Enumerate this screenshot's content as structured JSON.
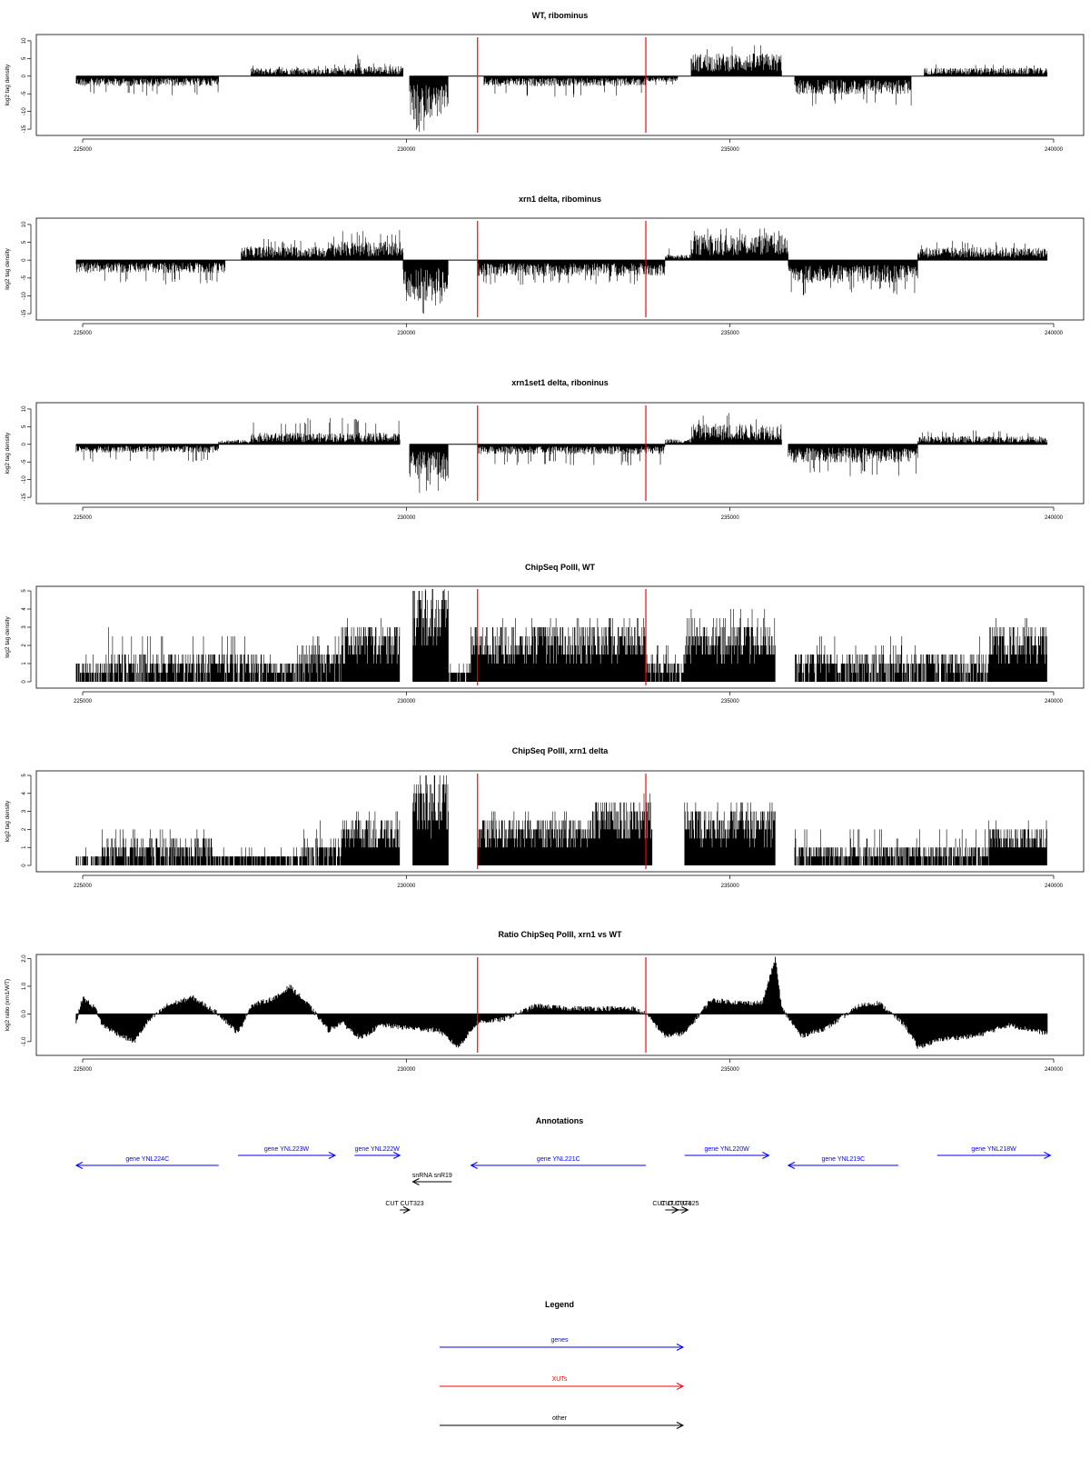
{
  "chart_data": [
    {
      "type": "bar",
      "title": "WT, ribominus",
      "ylabel": "log2 tag density",
      "xlim": [
        224800,
        240400
      ],
      "ylim": [
        -16,
        11
      ],
      "yticks": [
        10,
        5,
        0,
        -5,
        -10,
        -15
      ],
      "xticks": [
        225000,
        230000,
        235000,
        240000
      ],
      "markers": [
        231100,
        233700
      ],
      "segments": [
        {
          "start": 224900,
          "end": 227100,
          "sign": -1,
          "typ": 2.2,
          "peak": 5.5
        },
        {
          "start": 227100,
          "end": 227600,
          "sign": 0
        },
        {
          "start": 227600,
          "end": 228800,
          "sign": 1,
          "typ": 1.8,
          "peak": 3.0
        },
        {
          "start": 228800,
          "end": 229250,
          "sign": 1,
          "typ": 1.8,
          "peak": 3.5
        },
        {
          "start": 229250,
          "end": 229300,
          "sign": 1,
          "typ": 5,
          "peak": 8.2
        },
        {
          "start": 229300,
          "end": 229950,
          "sign": 1,
          "typ": 2.2,
          "peak": 4.0
        },
        {
          "start": 230050,
          "end": 230650,
          "sign": -1,
          "typ": 9,
          "peak": 16
        },
        {
          "start": 230650,
          "end": 231200,
          "sign": 0
        },
        {
          "start": 231200,
          "end": 233700,
          "sign": -1,
          "typ": 2.2,
          "peak": 6.0
        },
        {
          "start": 233700,
          "end": 234200,
          "sign": -1,
          "typ": 1.2,
          "peak": 3.0
        },
        {
          "start": 234200,
          "end": 234400,
          "sign": 0
        },
        {
          "start": 234400,
          "end": 235800,
          "sign": 1,
          "typ": 5,
          "peak": 9
        },
        {
          "start": 235800,
          "end": 236000,
          "sign": 0
        },
        {
          "start": 236000,
          "end": 237800,
          "sign": -1,
          "typ": 4,
          "peak": 8.5
        },
        {
          "start": 237800,
          "end": 238000,
          "sign": 0
        },
        {
          "start": 238000,
          "end": 239900,
          "sign": 1,
          "typ": 1.8,
          "peak": 3.5
        }
      ]
    },
    {
      "type": "bar",
      "title": "xrn1 delta, ribominus",
      "ylabel": "log2 tag density",
      "xlim": [
        224800,
        240400
      ],
      "ylim": [
        -16,
        11
      ],
      "yticks": [
        10,
        5,
        0,
        -5,
        -10,
        -15
      ],
      "xticks": [
        225000,
        230000,
        235000,
        240000
      ],
      "markers": [
        231100,
        233700
      ],
      "segments": [
        {
          "start": 224900,
          "end": 227200,
          "sign": -1,
          "typ": 2.8,
          "peak": 7.0
        },
        {
          "start": 227200,
          "end": 227450,
          "sign": 0
        },
        {
          "start": 227450,
          "end": 228800,
          "sign": 1,
          "typ": 3.0,
          "peak": 6.0
        },
        {
          "start": 228800,
          "end": 229950,
          "sign": 1,
          "typ": 4.0,
          "peak": 8.5
        },
        {
          "start": 229950,
          "end": 230650,
          "sign": -1,
          "typ": 9,
          "peak": 15
        },
        {
          "start": 230650,
          "end": 231100,
          "sign": 0
        },
        {
          "start": 231100,
          "end": 234000,
          "sign": -1,
          "typ": 3.5,
          "peak": 7.0
        },
        {
          "start": 234000,
          "end": 234400,
          "sign": 1,
          "typ": 1.2,
          "peak": 4.0
        },
        {
          "start": 234400,
          "end": 235900,
          "sign": 1,
          "typ": 5.5,
          "peak": 9.0
        },
        {
          "start": 235900,
          "end": 237900,
          "sign": -1,
          "typ": 5,
          "peak": 10
        },
        {
          "start": 237900,
          "end": 239900,
          "sign": 1,
          "typ": 2.8,
          "peak": 5.5
        }
      ]
    },
    {
      "type": "bar",
      "title": "xrn1set1 delta, riboninus",
      "ylabel": "log2 tag density",
      "xlim": [
        224800,
        240400
      ],
      "ylim": [
        -16,
        11
      ],
      "yticks": [
        10,
        5,
        0,
        -5,
        -10,
        -15
      ],
      "xticks": [
        225000,
        230000,
        235000,
        240000
      ],
      "markers": [
        231100,
        233700
      ],
      "segments": [
        {
          "start": 224900,
          "end": 227100,
          "sign": -1,
          "typ": 1.8,
          "peak": 5.0
        },
        {
          "start": 227100,
          "end": 227600,
          "sign": 1,
          "typ": 1.0,
          "peak": 2.5
        },
        {
          "start": 227600,
          "end": 229900,
          "sign": 1,
          "typ": 2.5,
          "peak": 7.5
        },
        {
          "start": 230050,
          "end": 230650,
          "sign": -1,
          "typ": 8,
          "peak": 14
        },
        {
          "start": 230650,
          "end": 231100,
          "sign": 0
        },
        {
          "start": 231100,
          "end": 234000,
          "sign": -1,
          "typ": 2.2,
          "peak": 6.0
        },
        {
          "start": 234000,
          "end": 234400,
          "sign": 1,
          "typ": 1.2,
          "peak": 3.0
        },
        {
          "start": 234400,
          "end": 235800,
          "sign": 1,
          "typ": 4.5,
          "peak": 9.0
        },
        {
          "start": 235900,
          "end": 237900,
          "sign": -1,
          "typ": 4,
          "peak": 9
        },
        {
          "start": 237900,
          "end": 239900,
          "sign": 1,
          "typ": 1.8,
          "peak": 4.0
        }
      ]
    },
    {
      "type": "bar",
      "title": "ChipSeq PolII, WT",
      "ylabel": "log2 tag density",
      "xlim": [
        224800,
        240400
      ],
      "ylim": [
        -0.2,
        5.1
      ],
      "yticks": [
        0,
        1,
        2,
        3,
        4,
        5
      ],
      "xticks": [
        225000,
        230000,
        235000,
        240000
      ],
      "markers": [
        231100,
        233700
      ],
      "segments": [
        {
          "start": 224900,
          "end": 225400,
          "sign": 1,
          "typ": 0.8,
          "peak": 1.5
        },
        {
          "start": 225400,
          "end": 227800,
          "sign": 1,
          "typ": 1.2,
          "peak": 2.8
        },
        {
          "start": 227800,
          "end": 228300,
          "sign": 1,
          "typ": 0.9,
          "peak": 2.0
        },
        {
          "start": 228300,
          "end": 229000,
          "sign": 1,
          "typ": 1.4,
          "peak": 2.5
        },
        {
          "start": 229000,
          "end": 229900,
          "sign": 1,
          "typ": 2.3,
          "peak": 3.8
        },
        {
          "start": 230100,
          "end": 230650,
          "sign": 1,
          "typ": 4.3,
          "peak": 5.0
        },
        {
          "start": 230650,
          "end": 231000,
          "sign": 1,
          "typ": 0.5,
          "peak": 1.0
        },
        {
          "start": 231000,
          "end": 232900,
          "sign": 1,
          "typ": 2.3,
          "peak": 3.5
        },
        {
          "start": 232900,
          "end": 233700,
          "sign": 1,
          "typ": 2.6,
          "peak": 3.6
        },
        {
          "start": 233700,
          "end": 234300,
          "sign": 1,
          "typ": 1.0,
          "peak": 2.0
        },
        {
          "start": 234300,
          "end": 235700,
          "sign": 1,
          "typ": 2.5,
          "peak": 4.2
        },
        {
          "start": 235700,
          "end": 236000,
          "sign": 0
        },
        {
          "start": 236000,
          "end": 237600,
          "sign": 1,
          "typ": 1.3,
          "peak": 2.5
        },
        {
          "start": 237600,
          "end": 239000,
          "sign": 1,
          "typ": 1.3,
          "peak": 2.5
        },
        {
          "start": 239000,
          "end": 239900,
          "sign": 1,
          "typ": 2.3,
          "peak": 3.5
        }
      ]
    },
    {
      "type": "bar",
      "title": "ChipSeq PolII, xrn1 delta",
      "ylabel": "log2 tag density",
      "xlim": [
        224800,
        240400
      ],
      "ylim": [
        -0.2,
        5.1
      ],
      "yticks": [
        0,
        1,
        2,
        3,
        4,
        5
      ],
      "xticks": [
        225000,
        230000,
        235000,
        240000
      ],
      "markers": [
        231100,
        233700
      ],
      "segments": [
        {
          "start": 224900,
          "end": 225300,
          "sign": 1,
          "typ": 0.4,
          "peak": 1.0
        },
        {
          "start": 225300,
          "end": 227000,
          "sign": 1,
          "typ": 1.1,
          "peak": 2.2
        },
        {
          "start": 227000,
          "end": 228400,
          "sign": 1,
          "typ": 0.5,
          "peak": 1.2
        },
        {
          "start": 228400,
          "end": 229000,
          "sign": 1,
          "typ": 1.0,
          "peak": 2.5
        },
        {
          "start": 229000,
          "end": 229900,
          "sign": 1,
          "typ": 1.9,
          "peak": 3.0
        },
        {
          "start": 230100,
          "end": 230650,
          "sign": 1,
          "typ": 3.8,
          "peak": 4.4
        },
        {
          "start": 230650,
          "end": 231100,
          "sign": 0
        },
        {
          "start": 231100,
          "end": 232900,
          "sign": 1,
          "typ": 2.0,
          "peak": 3.0
        },
        {
          "start": 232900,
          "end": 233800,
          "sign": 1,
          "typ": 2.8,
          "peak": 3.6
        },
        {
          "start": 233800,
          "end": 234300,
          "sign": 0
        },
        {
          "start": 234300,
          "end": 235700,
          "sign": 1,
          "typ": 2.5,
          "peak": 3.2
        },
        {
          "start": 235700,
          "end": 236000,
          "sign": 0
        },
        {
          "start": 236000,
          "end": 239000,
          "sign": 1,
          "typ": 0.9,
          "peak": 2.0
        },
        {
          "start": 239000,
          "end": 239900,
          "sign": 1,
          "typ": 1.7,
          "peak": 2.5
        }
      ]
    },
    {
      "type": "area",
      "title": "Ratio ChipSeq PolII, xrn1 vs WT",
      "ylabel": "log2 ratio (xrn1/WT)",
      "xlim": [
        224800,
        240400
      ],
      "ylim": [
        -1.4,
        2.05
      ],
      "yticks": [
        2.0,
        1.0,
        0.0,
        -1.0
      ],
      "xticks": [
        225000,
        230000,
        235000,
        240000
      ],
      "markers": [
        231100,
        233700
      ],
      "x": [
        224900,
        225000,
        225200,
        225300,
        225600,
        225800,
        226000,
        226300,
        226700,
        227100,
        227400,
        227600,
        228000,
        228200,
        228500,
        228800,
        229000,
        229300,
        229600,
        230000,
        230500,
        230800,
        231100,
        231500,
        232000,
        232500,
        233000,
        233500,
        233700,
        234000,
        234300,
        234700,
        235200,
        235500,
        235700,
        235800,
        236100,
        236500,
        237000,
        237300,
        237700,
        237900,
        238300,
        238800,
        239300,
        239900
      ],
      "y": [
        -0.3,
        0.6,
        0.2,
        -0.4,
        -0.8,
        -1.0,
        -0.3,
        0.3,
        0.6,
        0.0,
        -0.7,
        0.3,
        0.6,
        1.0,
        0.3,
        -0.6,
        -0.3,
        -0.9,
        -0.4,
        -0.5,
        -0.6,
        -1.2,
        -0.3,
        -0.2,
        0.3,
        0.2,
        0.2,
        0.2,
        0.0,
        -0.8,
        -0.7,
        0.5,
        0.4,
        0.4,
        2.0,
        0.2,
        -0.8,
        -0.5,
        0.3,
        0.4,
        -0.4,
        -1.2,
        -0.9,
        -0.8,
        -0.4,
        -0.7
      ]
    }
  ],
  "annotations_panel": {
    "title": "Annotations",
    "items": [
      {
        "label": "gene YNL224C",
        "start": 224900,
        "end": 227100,
        "dir": "left",
        "row": 1,
        "color": "#0000ff"
      },
      {
        "label": "gene YNL223W",
        "start": 227400,
        "end": 228900,
        "dir": "right",
        "row": 0,
        "color": "#0000ff"
      },
      {
        "label": "gene YNL222W",
        "start": 229200,
        "end": 229900,
        "dir": "right",
        "row": 0,
        "color": "#0000ff"
      },
      {
        "label": "gene YNL221C",
        "start": 231000,
        "end": 233700,
        "dir": "left",
        "row": 1,
        "color": "#0000ff"
      },
      {
        "label": "gene YNL220W",
        "start": 234300,
        "end": 235600,
        "dir": "right",
        "row": 0,
        "color": "#0000ff"
      },
      {
        "label": "gene YNL219C",
        "start": 235900,
        "end": 237600,
        "dir": "left",
        "row": 1,
        "color": "#0000ff"
      },
      {
        "label": "gene YNL218W",
        "start": 238200,
        "end": 239950,
        "dir": "right",
        "row": 0,
        "color": "#0000ff"
      },
      {
        "label": "snRNA snR19",
        "start": 230100,
        "end": 230700,
        "dir": "left",
        "row": 2,
        "color": "#000000"
      },
      {
        "label": "CUT CUT323",
        "start": 229900,
        "end": 230050,
        "dir": "right",
        "row": 3,
        "color": "#000000"
      },
      {
        "label": "CUT CUT324",
        "start": 234000,
        "end": 234200,
        "dir": "right",
        "row": 3,
        "color": "#000000"
      },
      {
        "label": "CUT CUT325",
        "start": 234100,
        "end": 234350,
        "dir": "right",
        "row": 3,
        "color": "#000000"
      }
    ]
  },
  "legend_panel": {
    "title": "Legend",
    "items": [
      {
        "label": "genes",
        "color": "#0000ff"
      },
      {
        "label": "XUTs",
        "color": "#ff0000"
      },
      {
        "label": "other",
        "color": "#000000"
      }
    ]
  },
  "colors": {
    "marker": "#ff0000",
    "bars": "#000000",
    "axis": "#000000"
  }
}
